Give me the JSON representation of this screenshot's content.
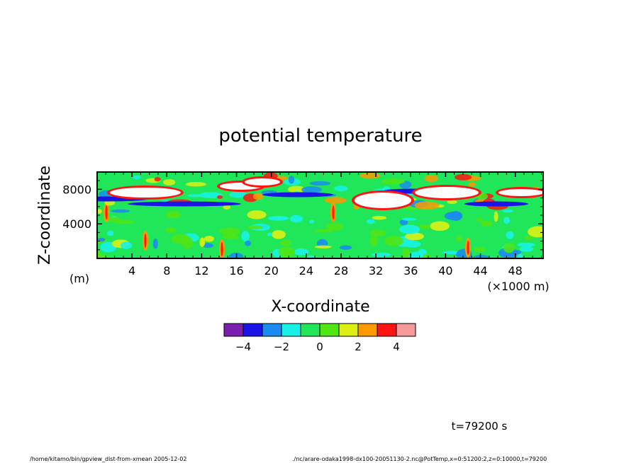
{
  "chart_data": {
    "type": "heatmap",
    "title": "potential temperature",
    "xlabel": "X-coordinate",
    "ylabel": "Z-coordinate",
    "x_unit": "(×1000 m)",
    "y_unit": "(m)",
    "xlim": [
      0,
      51.2
    ],
    "ylim": [
      0,
      10000
    ],
    "x_ticks": [
      4,
      8,
      12,
      16,
      20,
      24,
      28,
      32,
      36,
      40,
      44,
      48
    ],
    "x_tick_labels": [
      "4",
      "8",
      "12",
      "16",
      "20",
      "24",
      "28",
      "32",
      "36",
      "40",
      "44",
      "48"
    ],
    "y_ticks": [
      4000,
      8000
    ],
    "y_tick_labels": [
      "4000",
      "8000"
    ],
    "colorbar": {
      "colors": [
        "#7a1fb0",
        "#1a14e6",
        "#1a8cf0",
        "#18f2e6",
        "#20e65a",
        "#4fe614",
        "#ddf014",
        "#ff9900",
        "#ff1414",
        "#f59a9a"
      ],
      "tick_labels": [
        "−4",
        "−2",
        "0",
        "2",
        "4"
      ]
    },
    "time_label": "t=79200 s",
    "footer_left": "/home/kitamo/bin/gpview_dist-from-xmean  2005-12-02",
    "footer_right": "./nc/arare-odaka1998-dx100-20051130-2.nc@PotTemp,x=0:51200:2,z=0:10000,t=79200"
  }
}
